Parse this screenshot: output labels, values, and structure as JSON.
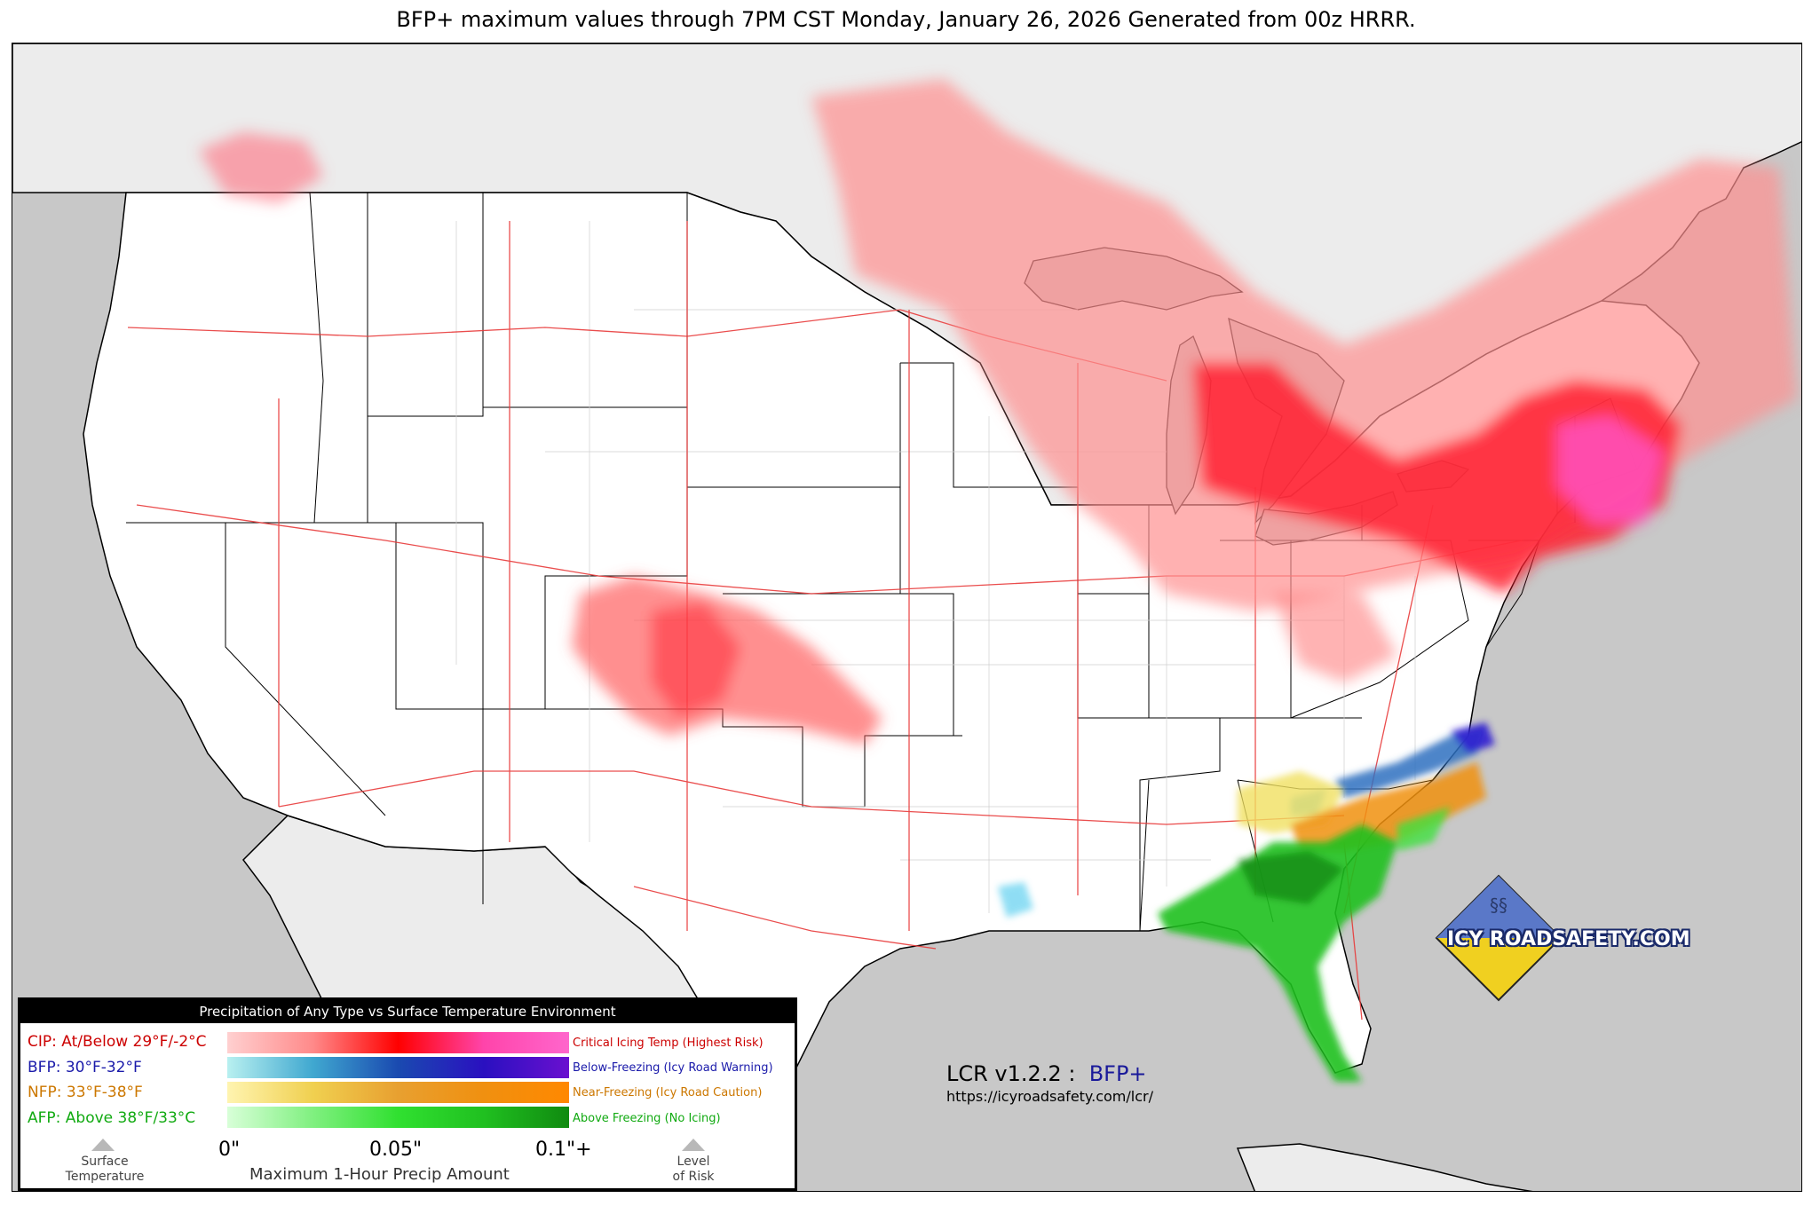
{
  "title": "BFP+ maximum values through 7PM CST Monday, January 26, 2026 Generated from 00z HRRR.",
  "legend": {
    "header": "Precipitation of Any Type vs Surface Temperature Environment",
    "rows": [
      {
        "label": "CIP: At/Below 29°F/-2°C",
        "description": "Critical Icing Temp (Highest Risk)",
        "color": "#cc0000",
        "desc_color": "#cc0000",
        "gradient": [
          "#ffd0d0",
          "#ff8a8a",
          "#ff0000",
          "#ff44aa",
          "#ff66cc"
        ]
      },
      {
        "label": "BFP: 30°F-32°F",
        "description": "Below-Freezing (Icy Road Warning)",
        "color": "#1a1aaa",
        "desc_color": "#1a1aaa",
        "gradient": [
          "#b8f0f0",
          "#40a8d0",
          "#1a4ab0",
          "#2a10c0",
          "#6a10d0"
        ]
      },
      {
        "label": "NFP: 33°F-38°F",
        "description": "Near-Freezing (Icy Road Caution)",
        "color": "#cc7700",
        "desc_color": "#cc7700",
        "gradient": [
          "#fff4b0",
          "#f0d050",
          "#e8a030",
          "#f09010",
          "#ff8800"
        ]
      },
      {
        "label": "AFP: Above 38°F/33°C",
        "description": "Above Freezing (No Icing)",
        "color": "#11aa11",
        "desc_color": "#11aa11",
        "gradient": [
          "#d8ffd8",
          "#80f080",
          "#30e030",
          "#20c020",
          "#108a10"
        ]
      }
    ],
    "tick_labels": [
      "0\"",
      "0.05\"",
      "0.1\"+"
    ],
    "xlabel": "Maximum 1-Hour Precip Amount",
    "left_marker": "Surface\nTemperature",
    "left_marker_lines": [
      "Surface",
      "Temperature"
    ],
    "right_marker_lines": [
      "Level",
      "of Risk"
    ]
  },
  "version": {
    "prefix": "LCR v1.2.2 :",
    "product": "BFP+"
  },
  "url": "https://icyroadsafety.com/lcr/",
  "logo": {
    "text": "ICY ROADSAFETY.COM"
  },
  "colors": {
    "ocean": "#c8c8c8",
    "land": "#ffffff",
    "foreign": "#ececec",
    "roads": "#e83a3a",
    "counties": "#c8c8c8"
  }
}
